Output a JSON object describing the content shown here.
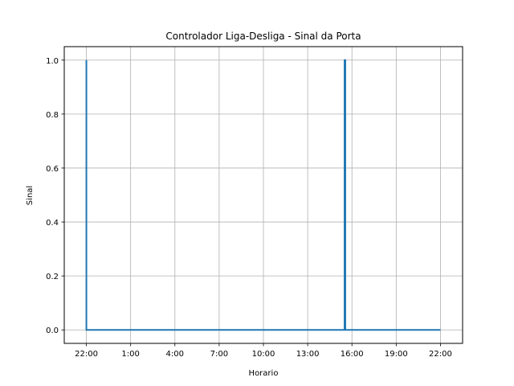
{
  "chart_data": {
    "type": "line",
    "title": "Controlador Liga-Desliga - Sinal da Porta",
    "xlabel": "Horario",
    "ylabel": "Sinal",
    "x_unit": "hours_since_start",
    "xlim": [
      -1.5,
      25.5
    ],
    "ylim": [
      -0.05,
      1.05
    ],
    "grid": true,
    "x_ticks": [
      {
        "value": 0,
        "label": "22:00"
      },
      {
        "value": 3,
        "label": "1:00"
      },
      {
        "value": 6,
        "label": "4:00"
      },
      {
        "value": 9,
        "label": "7:00"
      },
      {
        "value": 12,
        "label": "10:00"
      },
      {
        "value": 15,
        "label": "13:00"
      },
      {
        "value": 18,
        "label": "16:00"
      },
      {
        "value": 21,
        "label": "19:00"
      },
      {
        "value": 24,
        "label": "22:00"
      }
    ],
    "y_ticks": [
      {
        "value": 0.0,
        "label": "0.0"
      },
      {
        "value": 0.2,
        "label": "0.2"
      },
      {
        "value": 0.4,
        "label": "0.4"
      },
      {
        "value": 0.6,
        "label": "0.6"
      },
      {
        "value": 0.8,
        "label": "0.8"
      },
      {
        "value": 1.0,
        "label": "1.0"
      }
    ],
    "series": [
      {
        "name": "Sinal da Porta",
        "color": "#1f77b4",
        "x": [
          0,
          0,
          0.05,
          0.05,
          17.5,
          17.5,
          17.55,
          17.55,
          24
        ],
        "y": [
          1,
          0,
          0,
          0,
          0,
          1,
          1,
          0,
          0
        ]
      }
    ]
  }
}
